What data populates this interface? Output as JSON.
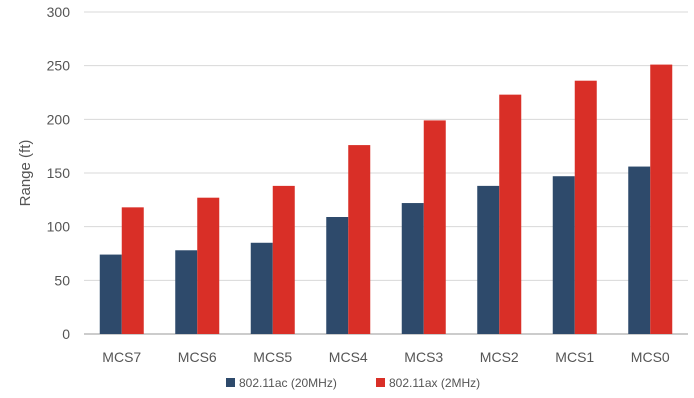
{
  "chart_data": {
    "type": "bar",
    "title": "",
    "xlabel": "",
    "ylabel": "Range (ft)",
    "categories": [
      "MCS7",
      "MCS6",
      "MCS5",
      "MCS4",
      "MCS3",
      "MCS2",
      "MCS1",
      "MCS0"
    ],
    "series": [
      {
        "name": "802.11ac (20MHz)",
        "color": "#2e4a6b",
        "values": [
          74,
          78,
          85,
          109,
          122,
          138,
          147,
          156
        ]
      },
      {
        "name": "802.11ax (2MHz)",
        "color": "#d92f27",
        "values": [
          118,
          127,
          138,
          176,
          199,
          223,
          236,
          251
        ]
      }
    ],
    "ylim": [
      0,
      300
    ],
    "yticks": [
      0,
      50,
      100,
      150,
      200,
      250,
      300
    ],
    "grid": true,
    "legend_position": "bottom-center"
  }
}
